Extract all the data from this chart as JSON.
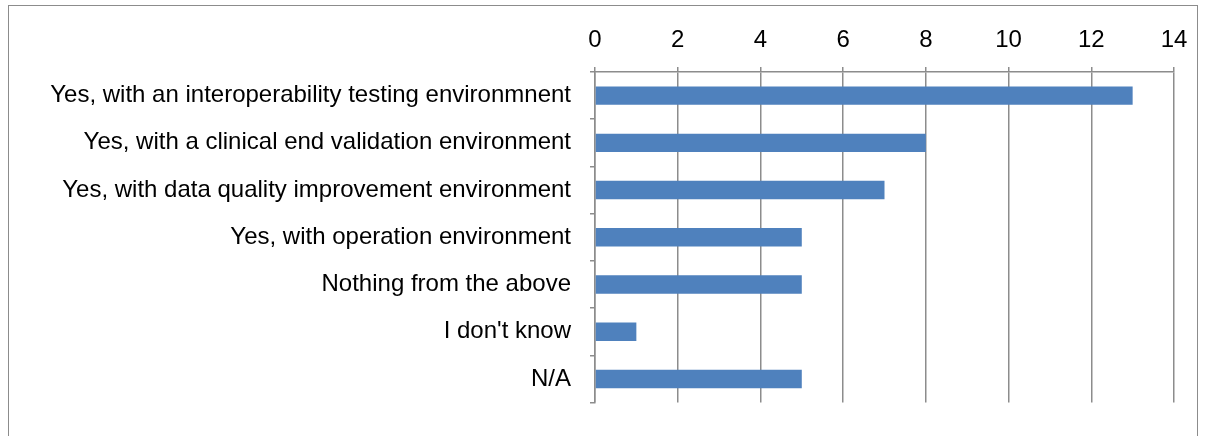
{
  "chart_data": {
    "type": "bar",
    "orientation": "horizontal",
    "categories": [
      "Yes, with an interoperability testing environmnent",
      "Yes, with a clinical end validation environment",
      "Yes, with data quality improvement environment",
      "Yes, with operation environment",
      "Nothing from the above",
      "I don't know",
      "N/A"
    ],
    "values": [
      13,
      8,
      7,
      5,
      5,
      1,
      5
    ],
    "color": "#4f81bd",
    "xlim": [
      0,
      14
    ],
    "xticks": [
      0,
      2,
      4,
      6,
      8,
      10,
      12,
      14
    ],
    "grid": "x"
  }
}
